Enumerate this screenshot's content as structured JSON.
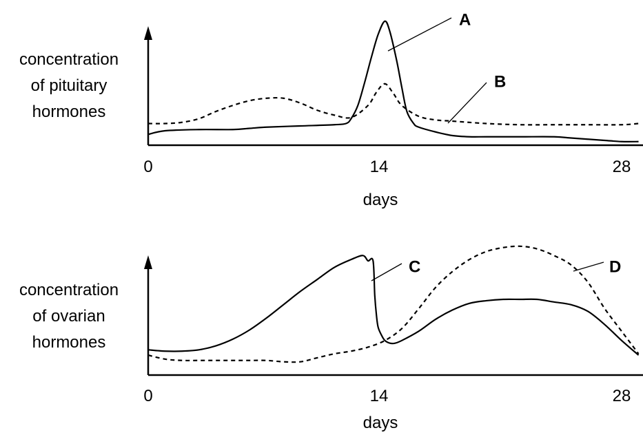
{
  "chart_data": [
    {
      "type": "line",
      "ylabel_lines": [
        "concentration",
        "of pituitary",
        "hormones"
      ],
      "xlabel": "days",
      "x_ticks": [
        "0",
        "14",
        "28"
      ],
      "xlim": [
        0,
        29
      ],
      "ylim": [
        0,
        10
      ],
      "series": [
        {
          "name": "A",
          "style": "solid",
          "x": [
            0,
            1,
            3,
            5,
            6,
            7,
            9,
            11,
            11.7,
            12,
            12.4,
            12.8,
            13.2,
            13.6,
            14,
            14.3,
            14.7,
            15,
            15.3,
            15.7,
            16,
            17,
            18,
            19,
            20,
            22,
            24,
            25,
            26,
            27,
            28,
            29
          ],
          "y": [
            0.9,
            1.2,
            1.3,
            1.3,
            1.4,
            1.5,
            1.6,
            1.7,
            1.8,
            2.2,
            3.3,
            5.2,
            7.3,
            9.2,
            10.3,
            9.4,
            7,
            4.8,
            2.8,
            1.8,
            1.5,
            1.1,
            0.8,
            0.7,
            0.7,
            0.7,
            0.7,
            0.6,
            0.5,
            0.4,
            0.3,
            0.3
          ]
        },
        {
          "name": "B",
          "style": "dashed",
          "x": [
            0,
            1,
            2,
            3,
            4,
            5,
            6,
            7,
            8,
            9,
            10,
            11,
            12,
            13,
            13.5,
            14,
            14.5,
            15,
            16,
            17,
            18,
            20,
            22,
            24,
            26,
            28,
            29
          ],
          "y": [
            1.8,
            1.8,
            1.9,
            2.2,
            2.8,
            3.3,
            3.7,
            3.9,
            3.9,
            3.5,
            2.9,
            2.5,
            2.3,
            3.3,
            4.4,
            5.1,
            4.3,
            3.3,
            2.4,
            2.1,
            2,
            1.8,
            1.7,
            1.7,
            1.7,
            1.7,
            1.8
          ]
        }
      ]
    },
    {
      "type": "line",
      "ylabel_lines": [
        "concentration",
        "of ovarian",
        "hormones"
      ],
      "xlabel": "days",
      "x_ticks": [
        "0",
        "14",
        "28"
      ],
      "xlim": [
        0,
        29
      ],
      "ylim": [
        0,
        10
      ],
      "series": [
        {
          "name": "C",
          "style": "solid",
          "x": [
            0,
            1,
            2,
            3,
            4,
            5,
            6,
            7,
            8,
            9,
            10,
            11,
            12,
            12.7,
            13,
            13.3,
            13.4,
            13.5,
            13.6,
            13.8,
            14,
            14.3,
            14.6,
            15,
            16,
            17,
            18,
            19,
            20,
            21,
            22,
            23,
            24,
            25,
            26,
            27,
            28,
            29
          ],
          "y": [
            1.9,
            1.8,
            1.8,
            1.9,
            2.2,
            2.7,
            3.4,
            4.3,
            5.3,
            6.3,
            7.2,
            8.1,
            8.7,
            9,
            8.6,
            8.6,
            6,
            4.5,
            3.6,
            3,
            2.6,
            2.4,
            2.4,
            2.6,
            3.3,
            4.2,
            4.9,
            5.4,
            5.6,
            5.7,
            5.7,
            5.7,
            5.5,
            5.3,
            4.8,
            3.8,
            2.6,
            1.5
          ]
        },
        {
          "name": "D",
          "style": "dashed",
          "x": [
            0,
            1,
            2,
            3,
            4,
            5,
            6,
            7,
            8,
            9,
            10,
            11,
            12,
            13,
            14,
            15,
            16,
            17,
            18,
            19,
            20,
            21,
            22,
            23,
            24,
            25,
            26,
            27,
            28,
            29
          ],
          "y": [
            1.5,
            1.2,
            1.1,
            1.1,
            1.1,
            1.1,
            1.1,
            1.1,
            1,
            1,
            1.3,
            1.6,
            1.8,
            2.1,
            2.6,
            3.5,
            5,
            6.6,
            7.8,
            8.7,
            9.3,
            9.6,
            9.7,
            9.5,
            9,
            8.3,
            7,
            5,
            3.3,
            1.6
          ]
        }
      ]
    }
  ]
}
